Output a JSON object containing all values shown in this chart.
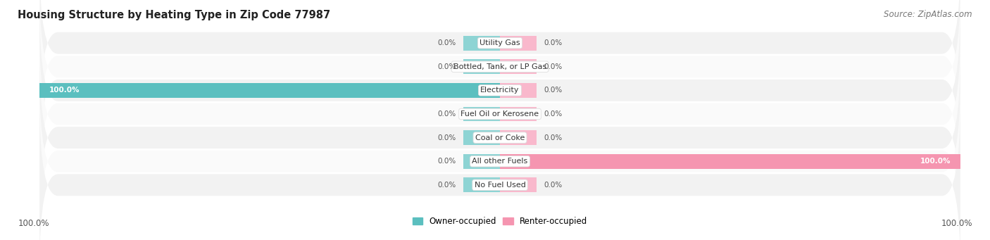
{
  "title": "Housing Structure by Heating Type in Zip Code 77987",
  "source": "Source: ZipAtlas.com",
  "categories": [
    "Utility Gas",
    "Bottled, Tank, or LP Gas",
    "Electricity",
    "Fuel Oil or Kerosene",
    "Coal or Coke",
    "All other Fuels",
    "No Fuel Used"
  ],
  "owner_values": [
    0.0,
    0.0,
    100.0,
    0.0,
    0.0,
    0.0,
    0.0
  ],
  "renter_values": [
    0.0,
    0.0,
    0.0,
    0.0,
    0.0,
    100.0,
    0.0
  ],
  "owner_color": "#5BBFBF",
  "renter_color": "#F595B0",
  "owner_stub_color": "#8ED4D4",
  "renter_stub_color": "#F9B8CC",
  "row_bg_even": "#F2F2F2",
  "row_bg_odd": "#FAFAFA",
  "label_bg": "#FFFFFF",
  "label_edge": "#DDDDDD",
  "fig_bg": "#FFFFFF",
  "xlim": 100,
  "stub_size": 8.0,
  "title_fontsize": 10.5,
  "source_fontsize": 8.5,
  "tick_fontsize": 8.5,
  "cat_fontsize": 8.0,
  "value_fontsize": 7.5,
  "legend_fontsize": 8.5
}
